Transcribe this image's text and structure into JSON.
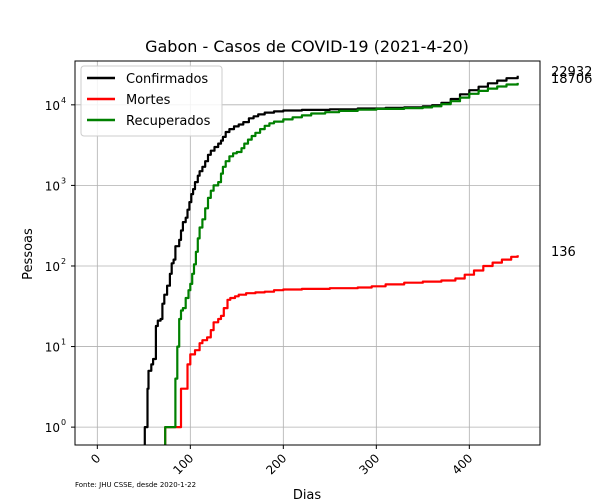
{
  "chart_data": {
    "type": "line",
    "title": "Gabon - Casos de COVID-19 (2021-4-20)",
    "xlabel": "Dias",
    "ylabel": "Pessoas",
    "yscale": "log",
    "xlim": [
      -24,
      476
    ],
    "ylim": [
      0.6,
      35000
    ],
    "x_ticks": [
      0,
      100,
      200,
      300,
      400
    ],
    "x_tick_labels": [
      "0",
      "100",
      "200",
      "300",
      "400"
    ],
    "y_ticks": [
      1,
      10,
      100,
      1000,
      10000
    ],
    "y_tick_labels": [
      "10",
      "10",
      "10",
      "10",
      "10"
    ],
    "y_tick_exponents": [
      "0",
      "1",
      "2",
      "3",
      "4"
    ],
    "grid": true,
    "legend_position": "top-left",
    "footnote": "Fonte: JHU CSSE, desde 2020-1-22",
    "end_labels": [
      "22932",
      "18706",
      "136"
    ],
    "series": [
      {
        "name": "Confirmados",
        "color": "#000000",
        "points": [
          [
            51,
            1
          ],
          [
            53,
            1
          ],
          [
            54,
            3
          ],
          [
            55,
            5
          ],
          [
            56,
            5
          ],
          [
            58,
            6
          ],
          [
            60,
            7
          ],
          [
            62,
            7
          ],
          [
            63,
            18
          ],
          [
            65,
            21
          ],
          [
            68,
            22
          ],
          [
            70,
            34
          ],
          [
            72,
            44
          ],
          [
            75,
            57
          ],
          [
            78,
            80
          ],
          [
            80,
            108
          ],
          [
            82,
            120
          ],
          [
            84,
            176
          ],
          [
            88,
            211
          ],
          [
            90,
            276
          ],
          [
            92,
            350
          ],
          [
            95,
            397
          ],
          [
            97,
            500
          ],
          [
            99,
            620
          ],
          [
            101,
            780
          ],
          [
            103,
            900
          ],
          [
            105,
            1100
          ],
          [
            108,
            1320
          ],
          [
            110,
            1500
          ],
          [
            113,
            1700
          ],
          [
            116,
            2000
          ],
          [
            119,
            2400
          ],
          [
            122,
            2700
          ],
          [
            126,
            3000
          ],
          [
            130,
            3300
          ],
          [
            133,
            3600
          ],
          [
            135,
            4000
          ],
          [
            138,
            4600
          ],
          [
            142,
            5000
          ],
          [
            147,
            5400
          ],
          [
            152,
            5700
          ],
          [
            157,
            6100
          ],
          [
            163,
            6800
          ],
          [
            168,
            7200
          ],
          [
            173,
            7600
          ],
          [
            180,
            8000
          ],
          [
            190,
            8300
          ],
          [
            200,
            8500
          ],
          [
            220,
            8650
          ],
          [
            250,
            8800
          ],
          [
            280,
            9000
          ],
          [
            310,
            9200
          ],
          [
            330,
            9300
          ],
          [
            350,
            9600
          ],
          [
            360,
            9900
          ],
          [
            370,
            10600
          ],
          [
            380,
            11800
          ],
          [
            390,
            13500
          ],
          [
            400,
            15200
          ],
          [
            410,
            16800
          ],
          [
            420,
            18500
          ],
          [
            430,
            20000
          ],
          [
            440,
            21400
          ],
          [
            452,
            22932
          ]
        ]
      },
      {
        "name": "Mortes",
        "color": "#ff0000",
        "points": [
          [
            73,
            1
          ],
          [
            76,
            1
          ],
          [
            88,
            1
          ],
          [
            90,
            3
          ],
          [
            95,
            3
          ],
          [
            97,
            6
          ],
          [
            100,
            8
          ],
          [
            105,
            9
          ],
          [
            110,
            11
          ],
          [
            113,
            12
          ],
          [
            118,
            13
          ],
          [
            122,
            16
          ],
          [
            125,
            20
          ],
          [
            130,
            22
          ],
          [
            133,
            24
          ],
          [
            136,
            30
          ],
          [
            140,
            38
          ],
          [
            143,
            40
          ],
          [
            148,
            42
          ],
          [
            152,
            44
          ],
          [
            160,
            46
          ],
          [
            170,
            47
          ],
          [
            180,
            48
          ],
          [
            190,
            50
          ],
          [
            200,
            51
          ],
          [
            220,
            52
          ],
          [
            250,
            53
          ],
          [
            280,
            54
          ],
          [
            295,
            56
          ],
          [
            310,
            59
          ],
          [
            330,
            62
          ],
          [
            350,
            64
          ],
          [
            370,
            66
          ],
          [
            385,
            70
          ],
          [
            395,
            78
          ],
          [
            405,
            88
          ],
          [
            415,
            100
          ],
          [
            425,
            110
          ],
          [
            435,
            120
          ],
          [
            445,
            130
          ],
          [
            452,
            136
          ]
        ]
      },
      {
        "name": "Recuperados",
        "color": "#008000",
        "points": [
          [
            73,
            1
          ],
          [
            83,
            1
          ],
          [
            84,
            4
          ],
          [
            86,
            10
          ],
          [
            88,
            22
          ],
          [
            90,
            28
          ],
          [
            92,
            30
          ],
          [
            95,
            40
          ],
          [
            98,
            50
          ],
          [
            100,
            60
          ],
          [
            102,
            80
          ],
          [
            104,
            105
          ],
          [
            106,
            150
          ],
          [
            108,
            220
          ],
          [
            110,
            300
          ],
          [
            113,
            380
          ],
          [
            116,
            520
          ],
          [
            119,
            700
          ],
          [
            122,
            860
          ],
          [
            125,
            1000
          ],
          [
            130,
            1100
          ],
          [
            133,
            1400
          ],
          [
            135,
            1700
          ],
          [
            138,
            2000
          ],
          [
            142,
            2300
          ],
          [
            146,
            2500
          ],
          [
            150,
            2600
          ],
          [
            155,
            2900
          ],
          [
            158,
            3300
          ],
          [
            162,
            3700
          ],
          [
            166,
            4100
          ],
          [
            170,
            4500
          ],
          [
            175,
            5000
          ],
          [
            180,
            5500
          ],
          [
            185,
            5900
          ],
          [
            190,
            6200
          ],
          [
            200,
            6600
          ],
          [
            210,
            7000
          ],
          [
            220,
            7400
          ],
          [
            230,
            7800
          ],
          [
            245,
            8100
          ],
          [
            260,
            8400
          ],
          [
            280,
            8700
          ],
          [
            300,
            8900
          ],
          [
            330,
            9100
          ],
          [
            350,
            9300
          ],
          [
            360,
            9600
          ],
          [
            370,
            10200
          ],
          [
            380,
            11100
          ],
          [
            390,
            12300
          ],
          [
            400,
            13700
          ],
          [
            410,
            14900
          ],
          [
            420,
            15900
          ],
          [
            430,
            16900
          ],
          [
            440,
            17900
          ],
          [
            452,
            18706
          ]
        ]
      }
    ]
  }
}
